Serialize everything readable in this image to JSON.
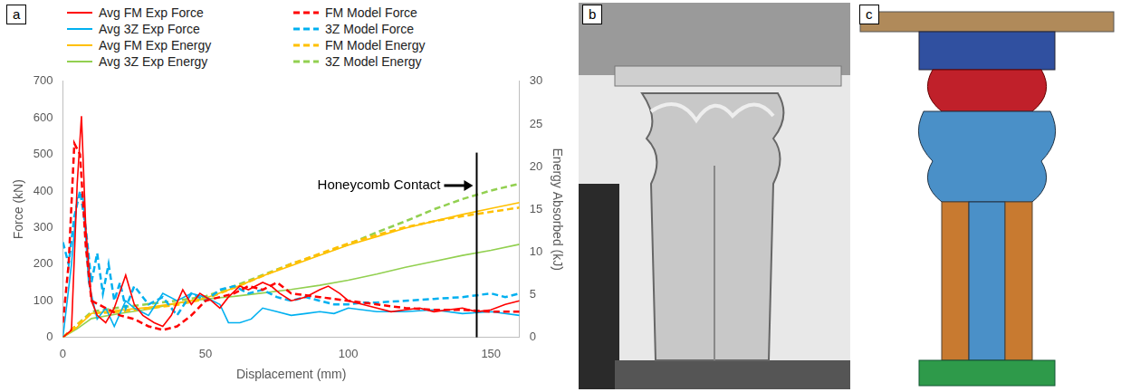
{
  "chart_data": {
    "type": "line",
    "panel_label": "a",
    "xlabel": "Displacement (mm)",
    "ylabel": "Force (kN)",
    "y2label": "Energy Absorbed (kJ)",
    "xlim": [
      0,
      160
    ],
    "xticks": [
      0,
      50,
      100,
      150
    ],
    "ylim": [
      0,
      700
    ],
    "yticks": [
      0,
      100,
      200,
      300,
      400,
      500,
      600,
      700
    ],
    "y2lim": [
      0,
      30
    ],
    "y2ticks": [
      0,
      5,
      10,
      15,
      20,
      25,
      30
    ],
    "grid": false,
    "legend": "top",
    "annotations": [
      {
        "text": "Honeycomb Contact",
        "x": 145,
        "y": 415,
        "line_y": [
          0,
          505
        ]
      }
    ],
    "series": [
      {
        "name": "Avg FM Exp Force",
        "color": "#ff0000",
        "line_style": "solid",
        "x": [
          0,
          3,
          5,
          6.5,
          8,
          10,
          12,
          15,
          18,
          22,
          25,
          28,
          32,
          35,
          38,
          42,
          45,
          48,
          52,
          55,
          58,
          62,
          65,
          70,
          73,
          76,
          80,
          85,
          90,
          93,
          97,
          100,
          105,
          110,
          115,
          120,
          125,
          130,
          135,
          140,
          145,
          150,
          155,
          160
        ],
        "values": [
          0,
          20,
          420,
          605,
          300,
          100,
          60,
          40,
          80,
          170,
          90,
          60,
          40,
          30,
          60,
          130,
          90,
          120,
          100,
          80,
          110,
          140,
          130,
          150,
          140,
          120,
          100,
          110,
          130,
          140,
          120,
          100,
          90,
          80,
          70,
          75,
          80,
          70,
          75,
          80,
          70,
          75,
          90,
          100
        ]
      },
      {
        "name": "FM Model Force",
        "color": "#ff0000",
        "line_style": "dashed",
        "x": [
          0,
          2,
          4,
          6,
          8,
          10,
          15,
          20,
          25,
          30,
          35,
          40,
          45,
          50,
          55,
          60,
          65,
          70,
          75,
          80,
          90,
          100,
          110,
          120,
          130,
          140,
          150,
          160
        ],
        "values": [
          40,
          200,
          530,
          500,
          250,
          100,
          80,
          60,
          50,
          30,
          20,
          30,
          60,
          100,
          110,
          120,
          140,
          130,
          150,
          120,
          110,
          100,
          90,
          80,
          75,
          75,
          70,
          70
        ]
      },
      {
        "name": "Avg 3Z Exp Force",
        "color": "#00b0f0",
        "line_style": "solid",
        "x": [
          0,
          3,
          5,
          7,
          9,
          12,
          15,
          18,
          22,
          25,
          30,
          35,
          40,
          45,
          50,
          55,
          58,
          62,
          66,
          70,
          75,
          80,
          85,
          90,
          95,
          100,
          110,
          120,
          130,
          140,
          150,
          160
        ],
        "values": [
          0,
          200,
          380,
          390,
          150,
          50,
          80,
          30,
          100,
          80,
          60,
          120,
          100,
          120,
          110,
          90,
          40,
          40,
          50,
          80,
          70,
          60,
          65,
          70,
          65,
          80,
          70,
          70,
          75,
          65,
          70,
          60
        ]
      },
      {
        "name": "3Z Model Force",
        "color": "#00b0f0",
        "line_style": "dashed",
        "x": [
          0,
          2,
          4,
          6,
          8,
          10,
          12,
          14,
          16,
          18,
          20,
          22,
          25,
          30,
          35,
          40,
          45,
          50,
          55,
          60,
          65,
          70,
          75,
          80,
          85,
          90,
          95,
          100,
          105,
          110,
          120,
          130,
          140,
          150,
          155,
          160
        ],
        "values": [
          260,
          200,
          330,
          400,
          300,
          150,
          230,
          120,
          200,
          100,
          150,
          80,
          140,
          90,
          110,
          60,
          120,
          100,
          130,
          140,
          120,
          130,
          110,
          100,
          110,
          100,
          90,
          90,
          95,
          95,
          100,
          105,
          110,
          120,
          110,
          120
        ]
      },
      {
        "name": "Avg FM Exp Energy",
        "color": "#ffc000",
        "line_style": "solid",
        "axis": "y2",
        "x": [
          0,
          5,
          10,
          20,
          30,
          40,
          50,
          60,
          70,
          80,
          90,
          100,
          110,
          120,
          130,
          140,
          150,
          160
        ],
        "values": [
          0,
          1.2,
          2.8,
          3.2,
          3.5,
          4.0,
          4.6,
          5.8,
          7.2,
          8.4,
          9.6,
          10.8,
          11.8,
          12.8,
          13.6,
          14.4,
          15.1,
          15.8
        ]
      },
      {
        "name": "FM Model Energy",
        "color": "#ffc000",
        "line_style": "dashed",
        "axis": "y2",
        "x": [
          0,
          5,
          10,
          20,
          30,
          40,
          50,
          60,
          70,
          80,
          90,
          100,
          110,
          120,
          130,
          140,
          150,
          160
        ],
        "values": [
          0,
          1.5,
          2.8,
          3.0,
          3.4,
          3.8,
          4.5,
          5.8,
          7.2,
          8.6,
          9.8,
          11.0,
          12.0,
          12.9,
          13.6,
          14.2,
          14.7,
          15.2
        ]
      },
      {
        "name": "Avg 3Z Exp Energy",
        "color": "#92d050",
        "line_style": "solid",
        "axis": "y2",
        "x": [
          0,
          5,
          10,
          20,
          30,
          40,
          50,
          60,
          70,
          80,
          90,
          100,
          110,
          120,
          130,
          140,
          150,
          160
        ],
        "values": [
          0,
          1.0,
          2.2,
          2.8,
          3.3,
          4.0,
          4.5,
          4.8,
          5.2,
          5.6,
          6.1,
          6.7,
          7.4,
          8.2,
          8.9,
          9.6,
          10.2,
          10.9
        ]
      },
      {
        "name": "3Z Model Energy",
        "color": "#92d050",
        "line_style": "dashed",
        "axis": "y2",
        "x": [
          0,
          5,
          10,
          20,
          30,
          40,
          50,
          60,
          70,
          80,
          90,
          100,
          110,
          120,
          130,
          140,
          150,
          160
        ],
        "values": [
          0,
          1.5,
          3.0,
          3.5,
          3.9,
          4.3,
          4.8,
          6.0,
          7.3,
          8.6,
          9.7,
          10.9,
          12.3,
          13.6,
          15.0,
          16.2,
          17.2,
          18.0
        ]
      }
    ]
  },
  "panels": [
    {
      "label": "b"
    },
    {
      "label": "c"
    }
  ]
}
